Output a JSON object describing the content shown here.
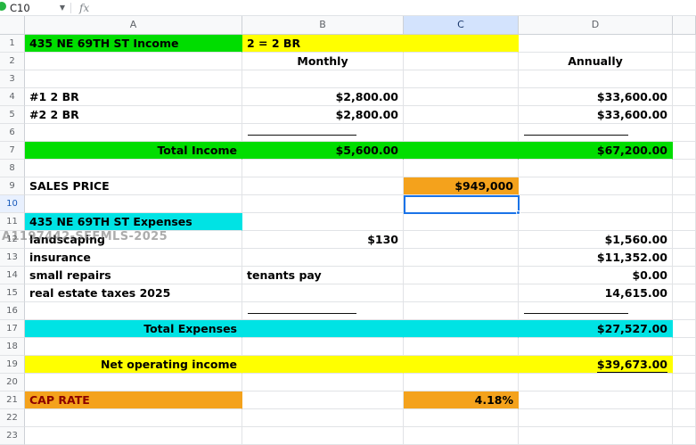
{
  "toolbar": {
    "name_box": "C10",
    "fx_label": "fx"
  },
  "watermark": {
    "text": "A1197442-SEFMLS-2025"
  },
  "grid": {
    "column_headers": [
      "A",
      "B",
      "C",
      "D",
      ""
    ],
    "selected_cell": "C10",
    "selected_column": "C",
    "selected_row": 10,
    "row_count": 23,
    "colors": {
      "green": "#00dd00",
      "yellow": "#ffff00",
      "cyan": "#00e3e4",
      "orange": "#f4a21c",
      "darkred": "#8b0000",
      "selection_blue": "#1a73e8"
    },
    "rows": [
      {
        "n": 1,
        "cells": {
          "A": {
            "text": "435 NE 69TH ST Income",
            "bg": "green"
          },
          "B": {
            "text": "2 = 2 BR",
            "bg": "yellow"
          },
          "C": {
            "bg": "yellow"
          }
        }
      },
      {
        "n": 2,
        "cells": {
          "B": {
            "text": "Monthly",
            "align": "center"
          },
          "D": {
            "text": "Annually",
            "align": "center"
          }
        }
      },
      {
        "n": 4,
        "cells": {
          "A": {
            "text": "#1 2 BR"
          },
          "B": {
            "text": "$2,800.00",
            "align": "right"
          },
          "D": {
            "text": "$33,600.00",
            "align": "right"
          }
        }
      },
      {
        "n": 5,
        "cells": {
          "A": {
            "text": "#2 2 BR"
          },
          "B": {
            "text": "$2,800.00",
            "align": "right"
          },
          "D": {
            "text": "$33,600.00",
            "align": "right"
          }
        }
      },
      {
        "n": 6,
        "cells": {
          "B": {
            "sumline": true
          },
          "D": {
            "sumline": true
          }
        }
      },
      {
        "n": 7,
        "cells": {
          "A": {
            "text": "Total Income",
            "bg": "green",
            "align": "right"
          },
          "B": {
            "text": "$5,600.00",
            "bg": "green",
            "align": "right"
          },
          "C": {
            "bg": "green"
          },
          "D": {
            "text": "$67,200.00",
            "bg": "green",
            "align": "right"
          }
        }
      },
      {
        "n": 9,
        "cells": {
          "A": {
            "text": "SALES PRICE"
          },
          "C": {
            "text": "$949,000",
            "bg": "orange",
            "align": "right"
          }
        }
      },
      {
        "n": 11,
        "cells": {
          "A": {
            "text": "435 NE 69TH ST Expenses",
            "bg": "cyan"
          }
        }
      },
      {
        "n": 12,
        "cells": {
          "A": {
            "text": "landscaping"
          },
          "B": {
            "text": "$130",
            "align": "right"
          },
          "D": {
            "text": "$1,560.00",
            "align": "right"
          }
        }
      },
      {
        "n": 13,
        "cells": {
          "A": {
            "text": "insurance"
          },
          "D": {
            "text": "$11,352.00",
            "align": "right"
          }
        }
      },
      {
        "n": 14,
        "cells": {
          "A": {
            "text": "small repairs"
          },
          "B": {
            "text": "tenants pay"
          },
          "D": {
            "text": "$0.00",
            "align": "right"
          }
        }
      },
      {
        "n": 15,
        "cells": {
          "A": {
            "text": "real estate taxes 2025"
          },
          "D": {
            "text": "14,615.00",
            "align": "right"
          }
        }
      },
      {
        "n": 16,
        "cells": {
          "B": {
            "sumline": true
          },
          "D": {
            "sumline": true
          }
        }
      },
      {
        "n": 17,
        "cells": {
          "A": {
            "text": "Total Expenses",
            "bg": "cyan",
            "align": "right"
          },
          "B": {
            "bg": "cyan"
          },
          "C": {
            "bg": "cyan"
          },
          "D": {
            "text": "$27,527.00",
            "bg": "cyan",
            "align": "right"
          }
        }
      },
      {
        "n": 19,
        "cells": {
          "A": {
            "text": "Net operating income",
            "bg": "yellow",
            "align": "right"
          },
          "B": {
            "bg": "yellow"
          },
          "C": {
            "bg": "yellow"
          },
          "D": {
            "text": "$39,673.00",
            "bg": "yellow",
            "align": "right",
            "underline": true
          }
        }
      },
      {
        "n": 21,
        "cells": {
          "A": {
            "text": "CAP RATE",
            "bg": "orange",
            "color": "darkred"
          },
          "C": {
            "text": "4.18%",
            "bg": "orange",
            "align": "right"
          }
        }
      }
    ]
  }
}
